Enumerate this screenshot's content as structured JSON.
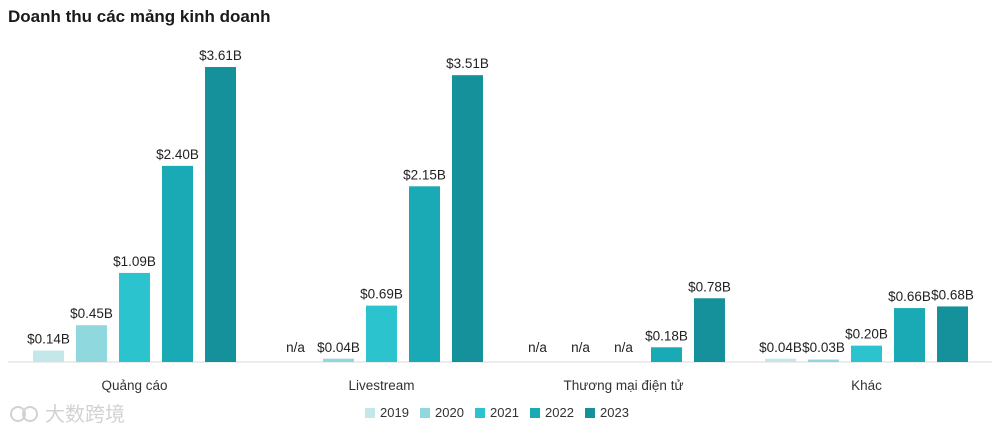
{
  "chart_data": {
    "type": "bar",
    "title": "Doanh thu các mảng kinh doanh",
    "categories": [
      "Quảng cáo",
      "Livestream",
      "Thương mại điện tử",
      "Khác"
    ],
    "series": [
      {
        "name": "2019",
        "color": "#c4e7ea",
        "values": [
          0.14,
          null,
          null,
          0.04
        ],
        "labels": [
          "$0.14B",
          "n/a",
          "n/a",
          "$0.04B"
        ]
      },
      {
        "name": "2020",
        "color": "#8ed8de",
        "values": [
          0.45,
          0.04,
          null,
          0.03
        ],
        "labels": [
          "$0.45B",
          "$0.04B",
          "n/a",
          "$0.03B"
        ]
      },
      {
        "name": "2021",
        "color": "#2ac3ce",
        "values": [
          1.09,
          0.69,
          null,
          0.2
        ],
        "labels": [
          "$1.09B",
          "$0.69B",
          "n/a",
          "$0.20B"
        ]
      },
      {
        "name": "2022",
        "color": "#1aaab5",
        "values": [
          2.4,
          2.15,
          0.18,
          0.66
        ],
        "labels": [
          "$2.40B",
          "$2.15B",
          "$0.18B",
          "$0.66B"
        ]
      },
      {
        "name": "2023",
        "color": "#14919a",
        "values": [
          3.61,
          3.51,
          0.78,
          0.68
        ],
        "labels": [
          "$3.61B",
          "$3.51B",
          "$0.78B",
          "$0.68B"
        ]
      }
    ],
    "ylim": [
      0,
      3.61
    ],
    "xlabel": "",
    "ylabel": "",
    "legend": "bottom"
  },
  "watermark": "大数跨境"
}
